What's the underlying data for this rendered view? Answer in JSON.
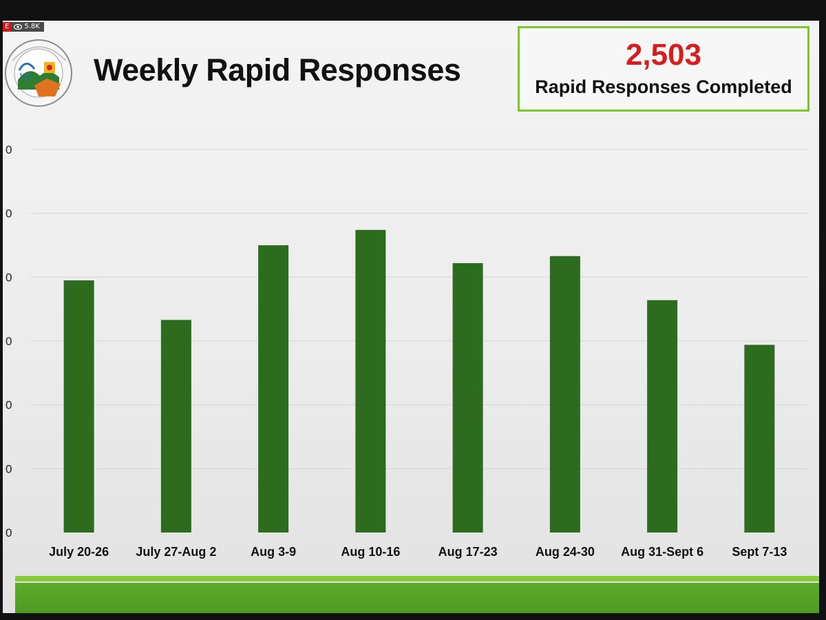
{
  "slide": {
    "title": "Weekly Rapid Responses",
    "kpi": {
      "value": "2,503",
      "label": "Rapid Responses Completed"
    },
    "overlay": {
      "live_label": "E",
      "viewer_count": "5.8K"
    }
  },
  "colors": {
    "bar": "#2d6b1e",
    "kpi_value": "#d71e1e",
    "kpi_border": "#7bc62d",
    "footer_band": "#5eaa2a"
  },
  "chart_data": {
    "type": "bar",
    "title": "Weekly Rapid Responses",
    "categories": [
      "July 20-26",
      "July 27-Aug 2",
      "Aug 3-9",
      "Aug 10-16",
      "Aug 17-23",
      "Aug 24-30",
      "Aug 31-Sept 6",
      "Sept 7-13"
    ],
    "values": [
      395,
      333,
      450,
      474,
      422,
      433,
      364,
      294
    ],
    "ylim": [
      0,
      600
    ],
    "ytick_labels": [
      "0",
      "0",
      "0",
      "0",
      "0",
      "0",
      "0"
    ],
    "grid": true,
    "legend": "none"
  }
}
